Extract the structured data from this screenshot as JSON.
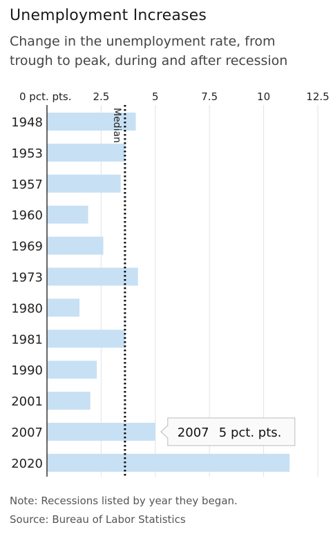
{
  "chart_data": {
    "type": "bar",
    "orientation": "horizontal",
    "title": "Unemployment Increases",
    "subtitle": "Change in the unemployment rate, from trough to peak, during and after recession",
    "categories": [
      "1948",
      "1953",
      "1957",
      "1960",
      "1969",
      "1973",
      "1980",
      "1981",
      "1990",
      "2001",
      "2007",
      "2020"
    ],
    "values": [
      4.1,
      3.6,
      3.4,
      1.9,
      2.6,
      4.2,
      1.5,
      3.6,
      2.3,
      2.0,
      5.0,
      11.2
    ],
    "x_ticks": [
      0,
      2.5,
      5,
      7.5,
      10,
      12.5
    ],
    "x_tick_labels": [
      "0 pct. pts.",
      "2.5",
      "5",
      "7.5",
      "10",
      "12.5"
    ],
    "xlim": [
      0,
      12.5
    ],
    "grid": true,
    "bar_color": "#c7e0f4",
    "median": {
      "value": 3.6,
      "label": "Median"
    },
    "tooltip": {
      "category": "2007",
      "value_text": "5 pct. pts."
    },
    "note": "Note: Recessions listed by year they began.",
    "source": "Source: Bureau of Labor Statistics"
  }
}
